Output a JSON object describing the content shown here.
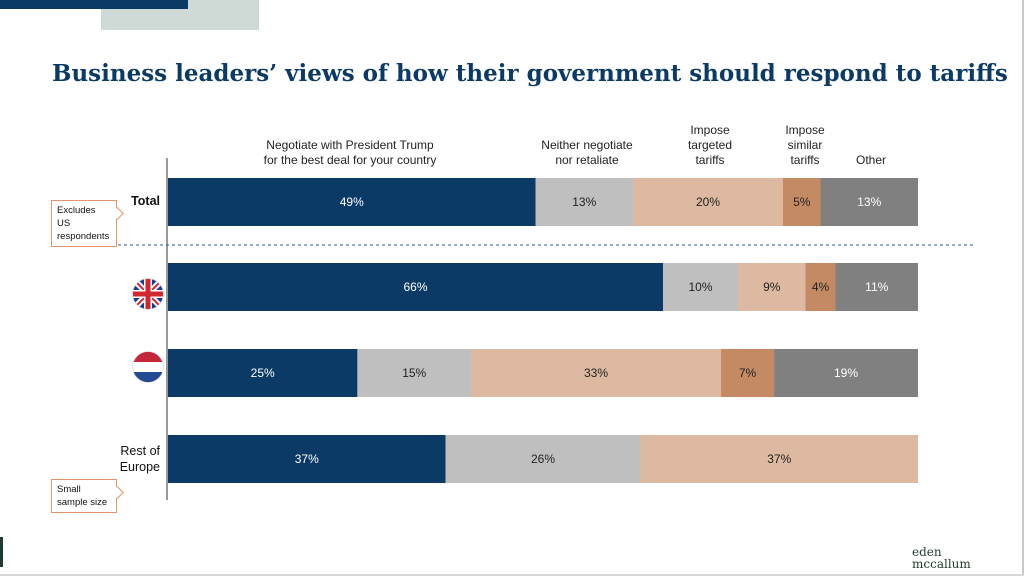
{
  "title": "Business leaders’ views of how their government should respond to tariffs",
  "logo": {
    "line1": "eden",
    "line2": "mccallum"
  },
  "callouts": {
    "total": "Excludes US\nrespondents",
    "rest": "Small\nsample size"
  },
  "icons": {
    "uk_flag": "uk-flag-icon",
    "nl_flag": "netherlands-flag-icon"
  },
  "colors": {
    "title": "#0b3a66",
    "negotiate": "#0b3a66",
    "neither": "#bfbfbf",
    "targeted": "#dcb9a0",
    "similar": "#c48a64",
    "other": "#808080"
  },
  "chart_data": {
    "type": "bar",
    "orientation": "horizontal",
    "stacked": true,
    "value_suffix": "%",
    "categories": [
      "Total",
      "UK",
      "Netherlands",
      "Rest of\nEurope"
    ],
    "category_display": [
      "Total",
      "",
      "",
      "Rest of\nEurope"
    ],
    "series": [
      {
        "name": "Negotiate with President Trump\nfor the best deal for your country",
        "values": [
          49,
          66,
          25,
          37
        ]
      },
      {
        "name": "Neither negotiate\nnor retaliate",
        "values": [
          13,
          10,
          15,
          26
        ]
      },
      {
        "name": "Impose\ntargeted\ntariffs",
        "values": [
          20,
          9,
          33,
          37
        ]
      },
      {
        "name": "Impose\nsimilar\ntariffs",
        "values": [
          5,
          4,
          7,
          0
        ]
      },
      {
        "name": "Other",
        "values": [
          13,
          11,
          19,
          0
        ]
      }
    ]
  }
}
